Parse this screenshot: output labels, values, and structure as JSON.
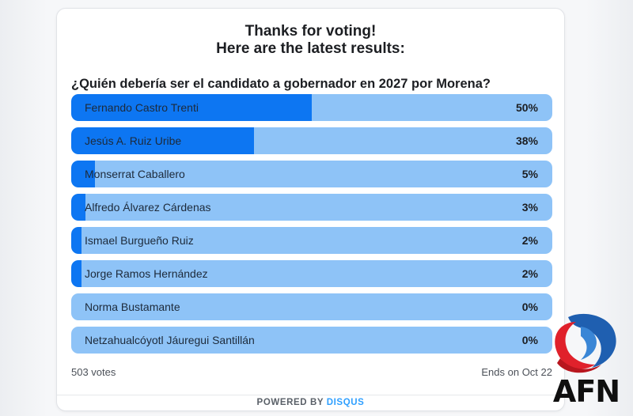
{
  "poll": {
    "header_line1": "Thanks for voting!",
    "header_line2": "Here are the latest results:",
    "question": "¿Quién debería ser el candidato a gobernador en 2027 por Morena?",
    "options": [
      {
        "label": "Fernando Castro Trenti",
        "percent_text": "50%",
        "percent": 50
      },
      {
        "label": "Jesús A. Ruiz Uribe",
        "percent_text": "38%",
        "percent": 38
      },
      {
        "label": "Monserrat Caballero",
        "percent_text": "5%",
        "percent": 5
      },
      {
        "label": "Alfredo Álvarez Cárdenas",
        "percent_text": "3%",
        "percent": 3
      },
      {
        "label": "Ismael Burgueño Ruiz",
        "percent_text": "2%",
        "percent": 2
      },
      {
        "label": "Jorge Ramos Hernández",
        "percent_text": "2%",
        "percent": 2
      },
      {
        "label": "Norma Bustamante",
        "percent_text": "0%",
        "percent": 0
      },
      {
        "label": "Netzahualcóyotl Jáuregui Santillán",
        "percent_text": "0%",
        "percent": 0
      }
    ],
    "votes": "503 votes",
    "ends": "Ends on Oct 22"
  },
  "footer": {
    "powered_by": "POWERED BY",
    "brand": "DISQUS"
  },
  "logo": {
    "text": "AFN"
  },
  "colors": {
    "bar_background": "#8ec3f7",
    "bar_fill": "#0d76f2",
    "brand_blue": "#2e9fff",
    "logo_red": "#e0212b",
    "logo_blue": "#1f5fb0"
  },
  "icons": {
    "logo": "afn-swirl-logo"
  }
}
